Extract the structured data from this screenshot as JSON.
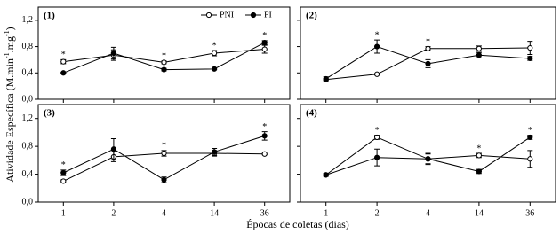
{
  "y_label": [
    "Atividade Específica (M.min",
    "-1",
    ".mg",
    "-1",
    ")"
  ],
  "x_label": "Épocas de coletas (dias)",
  "chart_data": [
    {
      "type": "line",
      "title": "(1)",
      "legend": "top-right",
      "ylim": [
        0,
        1.4
      ],
      "yticks": [
        {
          "value": 0,
          "label": "0,0"
        },
        {
          "value": 0.4,
          "label": "0,4"
        },
        {
          "value": 0.8,
          "label": "0,8"
        },
        {
          "value": 1.2,
          "label": "1,2"
        }
      ],
      "significance": [
        "*",
        null,
        "*",
        "*",
        "*"
      ],
      "series": [
        {
          "name": "PNI",
          "color": "#000000",
          "marker": "open",
          "values": [
            0.57,
            0.67,
            0.56,
            0.7,
            0.76
          ],
          "errors": [
            0.03,
            0.08,
            0.02,
            0.04,
            0.06
          ]
        },
        {
          "name": "PI",
          "color": "#000000",
          "marker": "filled",
          "values": [
            0.4,
            0.7,
            0.45,
            0.46,
            0.86
          ],
          "errors": [
            0.01,
            0.09,
            0.02,
            0.01,
            0.03
          ]
        }
      ]
    },
    {
      "type": "line",
      "title": "(2)",
      "ylim": [
        0,
        1.4
      ],
      "yticks": [
        0,
        0.4,
        0.8,
        1.2
      ],
      "significance": [
        null,
        "*",
        "*",
        null,
        null
      ],
      "series": [
        {
          "name": "PNI",
          "color": "#000000",
          "marker": "open",
          "values": [
            0.3,
            0.38,
            0.77,
            0.77,
            0.78
          ],
          "errors": [
            0.01,
            0.01,
            0.03,
            0.04,
            0.1
          ]
        },
        {
          "name": "PI",
          "color": "#000000",
          "marker": "filled",
          "values": [
            0.31,
            0.8,
            0.54,
            0.67,
            0.62
          ],
          "errors": [
            0.03,
            0.1,
            0.06,
            0.04,
            0.03
          ]
        }
      ]
    },
    {
      "type": "line",
      "title": "(3)",
      "ylim": [
        0,
        1.4
      ],
      "yticks": [
        {
          "value": 0,
          "label": "0,0"
        },
        {
          "value": 0.4,
          "label": "0,4"
        },
        {
          "value": 0.8,
          "label": "0,8"
        },
        {
          "value": 1.2,
          "label": "1,2"
        }
      ],
      "categories": [
        "1",
        "2",
        "4",
        "14",
        "36"
      ],
      "significance": [
        "*",
        null,
        "*",
        null,
        "*"
      ],
      "series": [
        {
          "name": "PNI",
          "color": "#000000",
          "marker": "open",
          "values": [
            0.3,
            0.65,
            0.7,
            0.7,
            0.69
          ],
          "errors": [
            0.02,
            0.07,
            0.04,
            0.04,
            0.01
          ]
        },
        {
          "name": "PI",
          "color": "#000000",
          "marker": "filled",
          "values": [
            0.42,
            0.76,
            0.32,
            0.72,
            0.95
          ],
          "errors": [
            0.04,
            0.15,
            0.04,
            0.05,
            0.06
          ]
        }
      ]
    },
    {
      "type": "line",
      "title": "(4)",
      "ylim": [
        0,
        1.4
      ],
      "yticks": [
        0,
        0.4,
        0.8,
        1.2
      ],
      "categories": [
        "1",
        "2",
        "4",
        "14",
        "36"
      ],
      "significance": [
        null,
        "*",
        null,
        "*",
        "*"
      ],
      "series": [
        {
          "name": "PNI",
          "color": "#000000",
          "marker": "open",
          "values": [
            0.39,
            0.93,
            0.62,
            0.67,
            0.62
          ],
          "errors": [
            0.02,
            0.03,
            0.07,
            0.03,
            0.12
          ]
        },
        {
          "name": "PI",
          "color": "#000000",
          "marker": "filled",
          "values": [
            0.39,
            0.64,
            0.62,
            0.44,
            0.93
          ],
          "errors": [
            0.02,
            0.12,
            0.08,
            0.03,
            0.03
          ]
        }
      ]
    }
  ]
}
